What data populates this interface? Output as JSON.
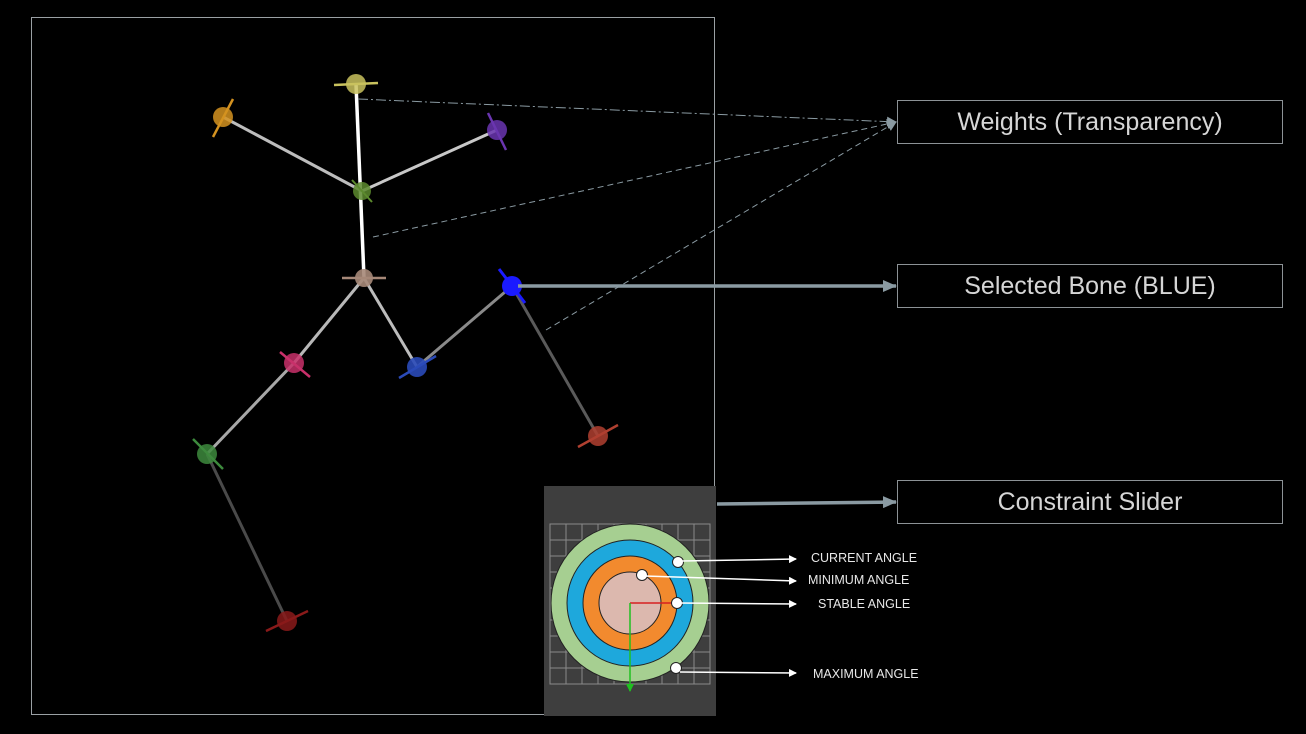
{
  "callouts": {
    "weights": "Weights (Transparency)",
    "selected_bone": "Selected Bone (BLUE)",
    "constraint_slider": "Constraint Slider"
  },
  "constraint_labels": {
    "current": "CURRENT ANGLE",
    "minimum": "MINIMUM ANGLE",
    "stable": "STABLE ANGLE",
    "maximum": "MAXIMUM ANGLE"
  },
  "colors": {
    "background": "#000000",
    "panel": "#3e3e3e",
    "selected_bone": "#1a1aff",
    "ring_outer": "#a6cf91",
    "ring_mid": "#1ea8dc",
    "ring_inner": "#f28a2e",
    "ring_core": "#dcb8ae",
    "arrow": "#8a9aa2"
  },
  "joints": [
    {
      "id": "head",
      "color": "#c9c25e"
    },
    {
      "id": "left-hand",
      "color": "#d49220"
    },
    {
      "id": "right-hand",
      "color": "#6a35b0"
    },
    {
      "id": "chest",
      "color": "#5c8a2e"
    },
    {
      "id": "hip",
      "color": "#a68878"
    },
    {
      "id": "left-knee",
      "color": "#c8306a"
    },
    {
      "id": "left-ankle",
      "color": "#3d8a3d"
    },
    {
      "id": "left-foot",
      "color": "#8a1a1a"
    },
    {
      "id": "right-knee",
      "color": "#2a4ab8"
    },
    {
      "id": "selected",
      "color": "#1a1aff"
    },
    {
      "id": "right-foot",
      "color": "#b04030"
    }
  ]
}
